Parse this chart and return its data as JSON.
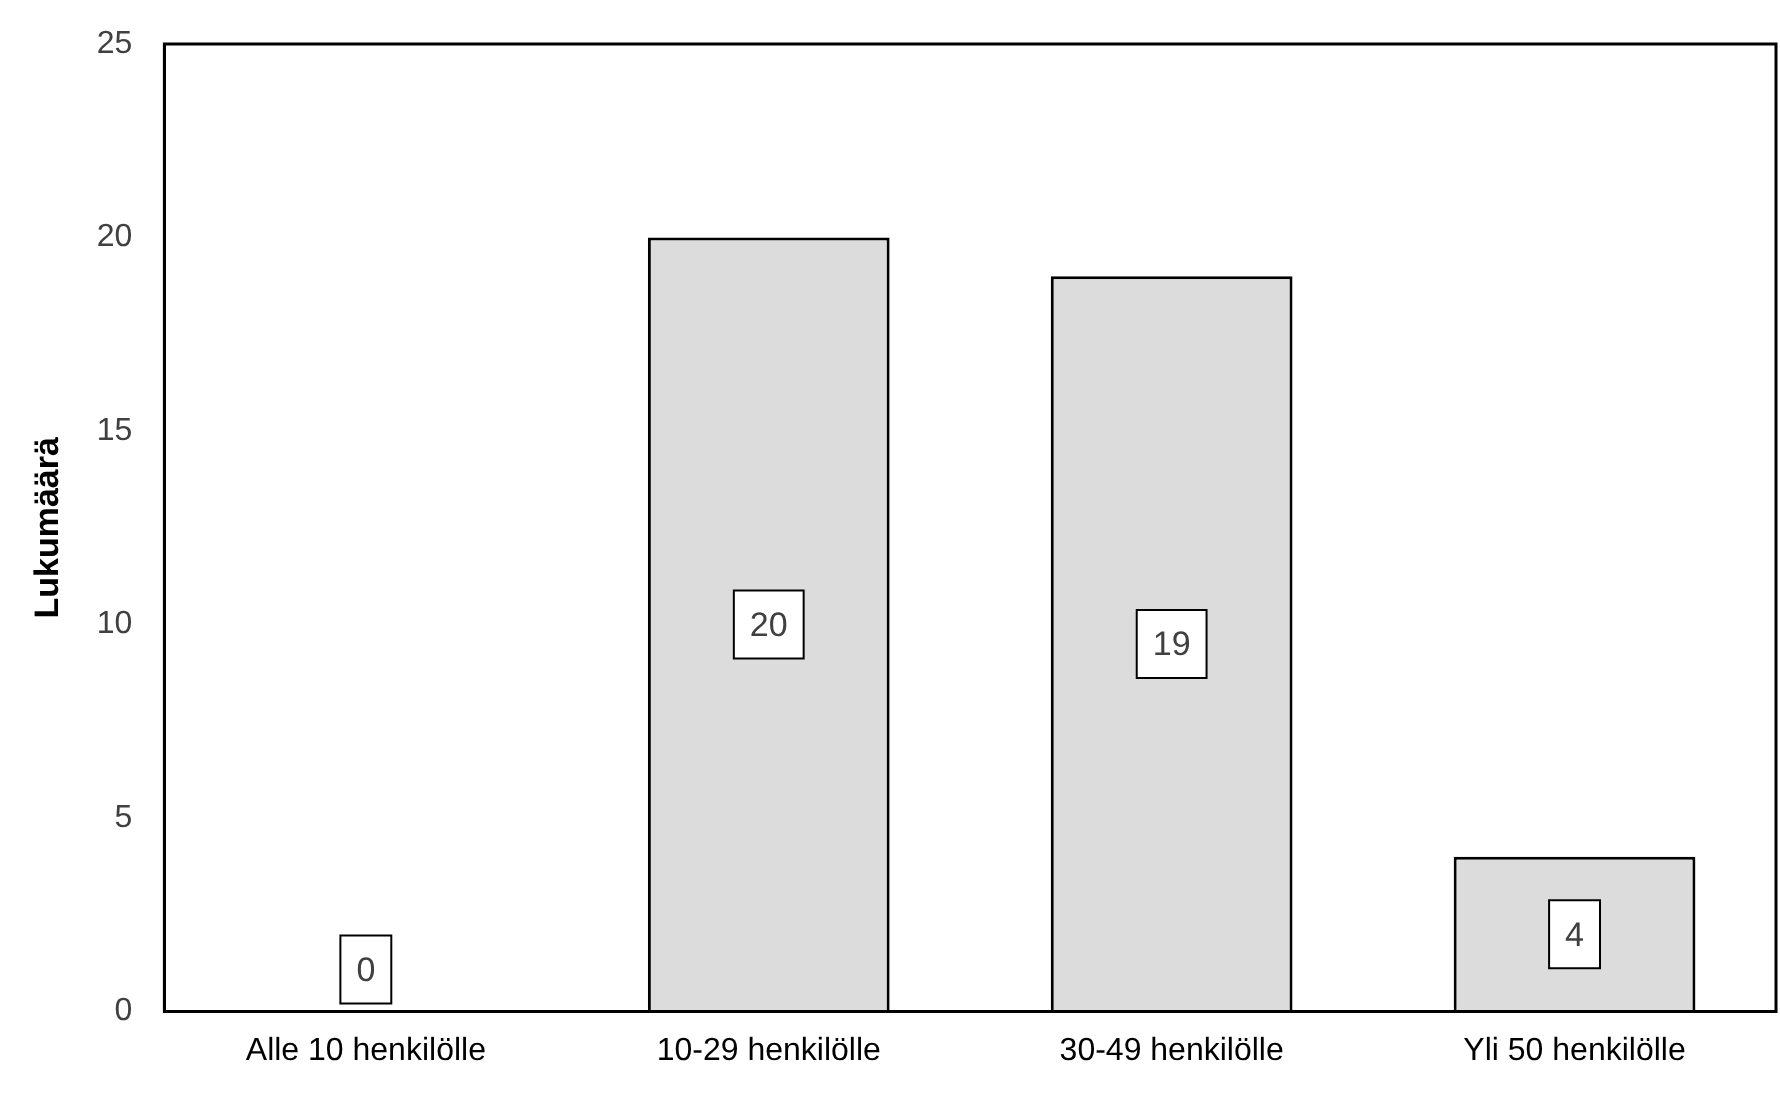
{
  "chart_data": {
    "type": "bar",
    "ylabel": "Lukumäärä",
    "categories": [
      "Alle 10 henkilölle",
      "10-29 henkilölle",
      "30-49 henkilölle",
      "Yli 50 henkilölle"
    ],
    "values": [
      0,
      20,
      19,
      4
    ],
    "color": "#dcdcdc",
    "ylim": [
      0,
      25
    ],
    "yticks": [
      0,
      5,
      10,
      15,
      20,
      25
    ],
    "grid": false,
    "legend": false,
    "data_labels": true
  }
}
